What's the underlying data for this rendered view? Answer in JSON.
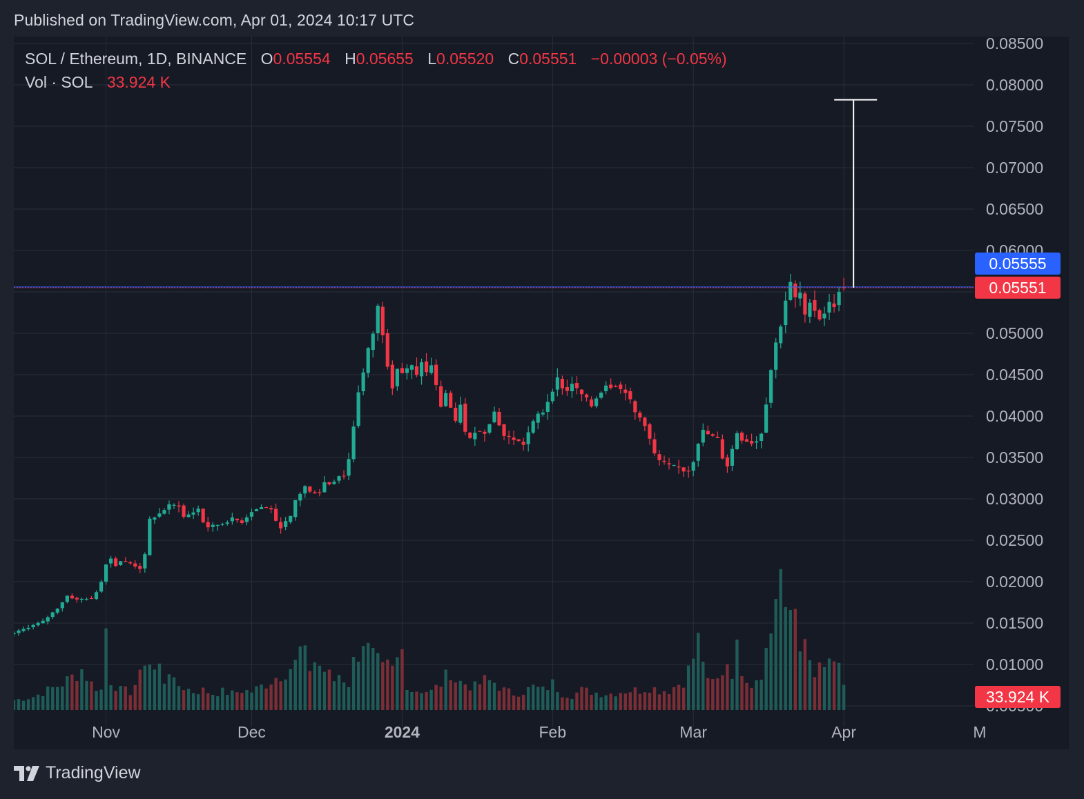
{
  "published": "Published on TradingView.com, Apr 01, 2024 10:17 UTC",
  "legend": {
    "symbol": "SOL / Ethereum, 1D, BINANCE",
    "o_label": "O",
    "o_value": "0.05554",
    "h_label": "H",
    "h_value": "0.05655",
    "l_label": "L",
    "l_value": "0.05520",
    "c_label": "C",
    "c_value": "0.05551",
    "change": "−0.00003 (−0.05%)",
    "vol_label": "Vol · SOL",
    "vol_value": "33.924 K"
  },
  "footer": {
    "brand": "TradingView"
  },
  "colors": {
    "background": "#161a25",
    "grid": "#2a2e39",
    "up": "#22ab94",
    "down": "#f23645",
    "vol_up": "#1f5c57",
    "vol_down": "#7a2e36",
    "bid_tag": "#2962ff",
    "last_tag": "#f23645"
  },
  "chart_data": {
    "type": "candlestick",
    "y_axis": {
      "min": 0.005,
      "max": 0.085,
      "ticks": [
        "0.08500",
        "0.08000",
        "0.07500",
        "0.07000",
        "0.06500",
        "0.06000",
        "0.05500",
        "0.05000",
        "0.04500",
        "0.04000",
        "0.03500",
        "0.03000",
        "0.02500",
        "0.02000",
        "0.01500",
        "0.01000",
        "0.00500"
      ]
    },
    "x_axis": {
      "labels": [
        {
          "text": "Nov",
          "day": 0
        },
        {
          "text": "Dec",
          "day": 30
        },
        {
          "text": "2024",
          "day": 61,
          "bold": true
        },
        {
          "text": "Feb",
          "day": 92
        },
        {
          "text": "Mar",
          "day": 121
        },
        {
          "text": "Apr",
          "day": 152
        },
        {
          "text": "M",
          "day": 180
        }
      ],
      "start_day": -19,
      "end_day": 198
    },
    "ohlc_keypoints": [
      [
        -19,
        0.0138
      ],
      [
        -13,
        0.0152
      ],
      [
        -10,
        0.0168
      ],
      [
        -8,
        0.0183
      ],
      [
        -6,
        0.0178
      ],
      [
        -4,
        0.018
      ],
      [
        -3,
        0.0179
      ],
      [
        -2,
        0.0188
      ],
      [
        -1,
        0.02
      ],
      [
        0,
        0.0222
      ],
      [
        1,
        0.0228
      ],
      [
        2,
        0.022
      ],
      [
        3,
        0.0225
      ],
      [
        5,
        0.0222
      ],
      [
        7,
        0.0216
      ],
      [
        8,
        0.0232
      ],
      [
        9,
        0.0275
      ],
      [
        11,
        0.0282
      ],
      [
        13,
        0.0292
      ],
      [
        15,
        0.0292
      ],
      [
        16,
        0.0278
      ],
      [
        18,
        0.0284
      ],
      [
        19,
        0.0288
      ],
      [
        20,
        0.0272
      ],
      [
        21,
        0.0266
      ],
      [
        24,
        0.027
      ],
      [
        26,
        0.0276
      ],
      [
        28,
        0.0272
      ],
      [
        30,
        0.0285
      ],
      [
        32,
        0.029
      ],
      [
        34,
        0.0288
      ],
      [
        35,
        0.0272
      ],
      [
        36,
        0.0266
      ],
      [
        38,
        0.0278
      ],
      [
        39,
        0.0298
      ],
      [
        41,
        0.0315
      ],
      [
        42,
        0.0308
      ],
      [
        44,
        0.0308
      ],
      [
        45,
        0.032
      ],
      [
        46,
        0.0318
      ],
      [
        47,
        0.0322
      ],
      [
        48,
        0.0328
      ],
      [
        49,
        0.0328
      ],
      [
        50,
        0.0348
      ],
      [
        51,
        0.0388
      ],
      [
        52,
        0.043
      ],
      [
        53,
        0.0452
      ],
      [
        54,
        0.048
      ],
      [
        55,
        0.05
      ],
      [
        56,
        0.0532
      ],
      [
        57,
        0.05
      ],
      [
        58,
        0.0462
      ],
      [
        59,
        0.0436
      ],
      [
        60,
        0.0458
      ],
      [
        61,
        0.0452
      ],
      [
        63,
        0.046
      ],
      [
        64,
        0.0448
      ],
      [
        65,
        0.0466
      ],
      [
        66,
        0.0452
      ],
      [
        67,
        0.0462
      ],
      [
        68,
        0.0436
      ],
      [
        69,
        0.0412
      ],
      [
        70,
        0.0428
      ],
      [
        71,
        0.041
      ],
      [
        72,
        0.0392
      ],
      [
        73,
        0.0415
      ],
      [
        74,
        0.038
      ],
      [
        75,
        0.0372
      ],
      [
        76,
        0.0382
      ],
      [
        78,
        0.038
      ],
      [
        80,
        0.0405
      ],
      [
        81,
        0.039
      ],
      [
        82,
        0.0376
      ],
      [
        84,
        0.0372
      ],
      [
        86,
        0.0366
      ],
      [
        87,
        0.038
      ],
      [
        88,
        0.0392
      ],
      [
        89,
        0.0402
      ],
      [
        90,
        0.0405
      ],
      [
        91,
        0.0418
      ],
      [
        92,
        0.0432
      ],
      [
        93,
        0.0445
      ],
      [
        94,
        0.0435
      ],
      [
        95,
        0.043
      ],
      [
        96,
        0.044
      ],
      [
        97,
        0.0432
      ],
      [
        98,
        0.0426
      ],
      [
        99,
        0.042
      ],
      [
        100,
        0.0412
      ],
      [
        101,
        0.0422
      ],
      [
        102,
        0.043
      ],
      [
        103,
        0.0438
      ],
      [
        104,
        0.0436
      ],
      [
        105,
        0.0438
      ],
      [
        106,
        0.0432
      ],
      [
        107,
        0.043
      ],
      [
        108,
        0.0418
      ],
      [
        109,
        0.0404
      ],
      [
        110,
        0.0398
      ],
      [
        111,
        0.039
      ],
      [
        112,
        0.0372
      ],
      [
        113,
        0.0354
      ],
      [
        114,
        0.0346
      ],
      [
        116,
        0.034
      ],
      [
        118,
        0.0338
      ],
      [
        119,
        0.0334
      ],
      [
        120,
        0.0334
      ],
      [
        121,
        0.0346
      ],
      [
        122,
        0.0368
      ],
      [
        123,
        0.0382
      ],
      [
        124,
        0.0378
      ],
      [
        126,
        0.0372
      ],
      [
        127,
        0.035
      ],
      [
        128,
        0.034
      ],
      [
        129,
        0.036
      ],
      [
        130,
        0.038
      ],
      [
        131,
        0.0372
      ],
      [
        133,
        0.0368
      ],
      [
        134,
        0.037
      ],
      [
        135,
        0.038
      ],
      [
        136,
        0.0416
      ],
      [
        137,
        0.0456
      ],
      [
        138,
        0.0488
      ],
      [
        139,
        0.051
      ],
      [
        140,
        0.054
      ],
      [
        141,
        0.056
      ],
      [
        142,
        0.0542
      ],
      [
        143,
        0.0548
      ],
      [
        144,
        0.052
      ],
      [
        145,
        0.054
      ],
      [
        146,
        0.0528
      ],
      [
        147,
        0.0518
      ],
      [
        148,
        0.0525
      ],
      [
        149,
        0.0536
      ],
      [
        150,
        0.0534
      ],
      [
        151,
        0.0548
      ],
      [
        152,
        0.0555
      ]
    ],
    "volume_keypoints": [
      [
        -19,
        0.0015
      ],
      [
        -15,
        0.002
      ],
      [
        -12,
        0.003
      ],
      [
        -9,
        0.004
      ],
      [
        -7,
        0.005
      ],
      [
        -5,
        0.0062
      ],
      [
        -3,
        0.004
      ],
      [
        -1,
        0.003
      ],
      [
        0,
        0.0125
      ],
      [
        1,
        0.0045
      ],
      [
        3,
        0.003
      ],
      [
        5,
        0.0028
      ],
      [
        7,
        0.005
      ],
      [
        8,
        0.008
      ],
      [
        9,
        0.0072
      ],
      [
        10,
        0.006
      ],
      [
        11,
        0.0065
      ],
      [
        12,
        0.0045
      ],
      [
        13,
        0.0065
      ],
      [
        14,
        0.004
      ],
      [
        16,
        0.0035
      ],
      [
        18,
        0.0028
      ],
      [
        20,
        0.003
      ],
      [
        22,
        0.0025
      ],
      [
        24,
        0.0028
      ],
      [
        26,
        0.0025
      ],
      [
        28,
        0.003
      ],
      [
        30,
        0.0028
      ],
      [
        33,
        0.004
      ],
      [
        35,
        0.005
      ],
      [
        37,
        0.006
      ],
      [
        39,
        0.007
      ],
      [
        40,
        0.009
      ],
      [
        41,
        0.008
      ],
      [
        42,
        0.0065
      ],
      [
        43,
        0.0075
      ],
      [
        45,
        0.006
      ],
      [
        47,
        0.0045
      ],
      [
        48,
        0.0055
      ],
      [
        50,
        0.004
      ],
      [
        51,
        0.0072
      ],
      [
        52,
        0.009
      ],
      [
        53,
        0.011
      ],
      [
        54,
        0.009
      ],
      [
        56,
        0.007
      ],
      [
        57,
        0.006
      ],
      [
        58,
        0.0065
      ],
      [
        59,
        0.006
      ],
      [
        60,
        0.0075
      ],
      [
        61,
        0.009
      ],
      [
        62,
        0.004
      ],
      [
        63,
        0.003
      ],
      [
        65,
        0.003
      ],
      [
        67,
        0.0028
      ],
      [
        69,
        0.004
      ],
      [
        70,
        0.005
      ],
      [
        71,
        0.006
      ],
      [
        72,
        0.0045
      ],
      [
        74,
        0.004
      ],
      [
        76,
        0.0035
      ],
      [
        78,
        0.0045
      ],
      [
        80,
        0.0042
      ],
      [
        82,
        0.003
      ],
      [
        84,
        0.0025
      ],
      [
        86,
        0.0028
      ],
      [
        88,
        0.0035
      ],
      [
        90,
        0.003
      ],
      [
        92,
        0.004
      ],
      [
        94,
        0.0025
      ],
      [
        96,
        0.0022
      ],
      [
        98,
        0.003
      ],
      [
        100,
        0.0028
      ],
      [
        102,
        0.0025
      ],
      [
        104,
        0.0025
      ],
      [
        106,
        0.0028
      ],
      [
        108,
        0.003
      ],
      [
        110,
        0.003
      ],
      [
        112,
        0.0035
      ],
      [
        114,
        0.003
      ],
      [
        116,
        0.003
      ],
      [
        118,
        0.004
      ],
      [
        119,
        0.0045
      ],
      [
        120,
        0.006
      ],
      [
        121,
        0.008
      ],
      [
        122,
        0.0105
      ],
      [
        123,
        0.008
      ],
      [
        124,
        0.004
      ],
      [
        126,
        0.0045
      ],
      [
        127,
        0.006
      ],
      [
        128,
        0.0075
      ],
      [
        129,
        0.006
      ],
      [
        130,
        0.009
      ],
      [
        131,
        0.0065
      ],
      [
        133,
        0.004
      ],
      [
        134,
        0.005
      ],
      [
        135,
        0.006
      ],
      [
        136,
        0.009
      ],
      [
        137,
        0.012
      ],
      [
        138,
        0.018
      ],
      [
        139,
        0.021
      ],
      [
        140,
        0.013
      ],
      [
        141,
        0.015
      ],
      [
        142,
        0.016
      ],
      [
        143,
        0.011
      ],
      [
        144,
        0.009
      ],
      [
        145,
        0.007
      ],
      [
        146,
        0.005
      ],
      [
        147,
        0.006
      ],
      [
        148,
        0.006
      ],
      [
        149,
        0.008
      ],
      [
        150,
        0.006
      ],
      [
        151,
        0.006
      ],
      [
        152,
        0.004
      ]
    ],
    "volume_scale_max": 0.02466,
    "current_price": 0.05551,
    "bid_price": 0.05555,
    "price_tags": {
      "bid": "0.05555",
      "last": "0.05551",
      "volume": "33.924 K"
    },
    "measure_line": {
      "day": 154,
      "from": 0.05551,
      "to": 0.0782
    },
    "grid": true
  }
}
